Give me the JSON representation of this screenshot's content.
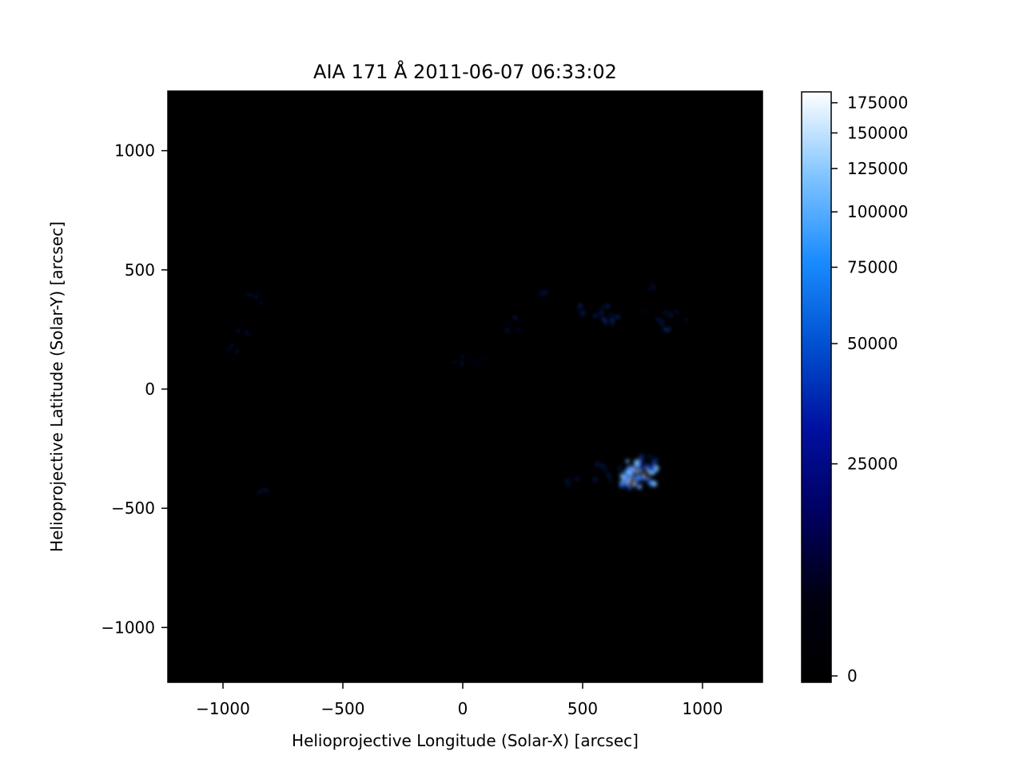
{
  "chart_data": {
    "type": "heatmap",
    "title": "AIA 171 Å 2011-06-07 06:33:02",
    "xlabel": "Helioprojective Longitude (Solar-X) [arcsec]",
    "ylabel": "Helioprojective Latitude (Solar-Y) [arcsec]",
    "xlim": [
      -1230,
      1250
    ],
    "ylim": [
      -1230,
      1250
    ],
    "x_ticks": [
      -1000,
      -500,
      0,
      500,
      1000
    ],
    "x_tick_labels": [
      "−1000",
      "−500",
      "0",
      "500",
      "1000"
    ],
    "y_ticks": [
      1000,
      500,
      0,
      -500,
      -1000
    ],
    "y_tick_labels": [
      "1000",
      "500",
      "0",
      "−500",
      "−1000"
    ],
    "grid": false,
    "background_color": "#000000",
    "colorbar": {
      "scale": "asinh",
      "vmin": 0,
      "vmax": 185000,
      "ticks": [
        0,
        25000,
        50000,
        75000,
        100000,
        125000,
        150000,
        175000
      ],
      "tick_labels": [
        "0",
        "25000",
        "50000",
        "75000",
        "100000",
        "125000",
        "150000",
        "175000"
      ],
      "colors": [
        "#000000",
        "#000010",
        "#000060",
        "#0010a0",
        "#0050d0",
        "#1a8cff",
        "#80c4ff",
        "#ffffff"
      ]
    },
    "bright_features": [
      {
        "x": 740,
        "y": -350,
        "intensity": 1.0,
        "spread": 70
      },
      {
        "x": 700,
        "y": -390,
        "intensity": 0.8,
        "spread": 40
      },
      {
        "x": 780,
        "y": -310,
        "intensity": 0.7,
        "spread": 40
      },
      {
        "x": 600,
        "y": -350,
        "intensity": 0.35,
        "spread": 60
      },
      {
        "x": 460,
        "y": -390,
        "intensity": 0.25,
        "spread": 30
      },
      {
        "x": 540,
        "y": 330,
        "intensity": 0.4,
        "spread": 70
      },
      {
        "x": 620,
        "y": 290,
        "intensity": 0.35,
        "spread": 40
      },
      {
        "x": 800,
        "y": 290,
        "intensity": 0.35,
        "spread": 70
      },
      {
        "x": 900,
        "y": 300,
        "intensity": 0.3,
        "spread": 40
      },
      {
        "x": 780,
        "y": 430,
        "intensity": 0.2,
        "spread": 20
      },
      {
        "x": 200,
        "y": 270,
        "intensity": 0.3,
        "spread": 50
      },
      {
        "x": 330,
        "y": 400,
        "intensity": 0.25,
        "spread": 20
      },
      {
        "x": -10,
        "y": 120,
        "intensity": 0.25,
        "spread": 30
      },
      {
        "x": 60,
        "y": 110,
        "intensity": 0.18,
        "spread": 30
      },
      {
        "x": -870,
        "y": 380,
        "intensity": 0.3,
        "spread": 40
      },
      {
        "x": -920,
        "y": 260,
        "intensity": 0.2,
        "spread": 50
      },
      {
        "x": -950,
        "y": 170,
        "intensity": 0.18,
        "spread": 30
      },
      {
        "x": -830,
        "y": -420,
        "intensity": 0.22,
        "spread": 30
      }
    ]
  }
}
